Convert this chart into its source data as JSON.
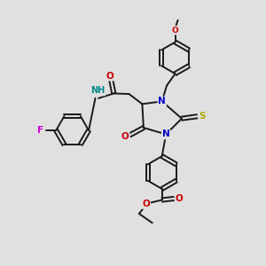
{
  "background_color": "#e0e0e0",
  "bond_color": "#1a1a1a",
  "bond_width": 1.4,
  "atom_colors": {
    "N": "#0000cc",
    "O": "#cc0000",
    "F": "#cc00cc",
    "S": "#aaaa00",
    "H": "#008888",
    "C": "#1a1a1a"
  },
  "font_size": 7.5,
  "fig_size": [
    3.0,
    3.0
  ],
  "dpi": 100
}
